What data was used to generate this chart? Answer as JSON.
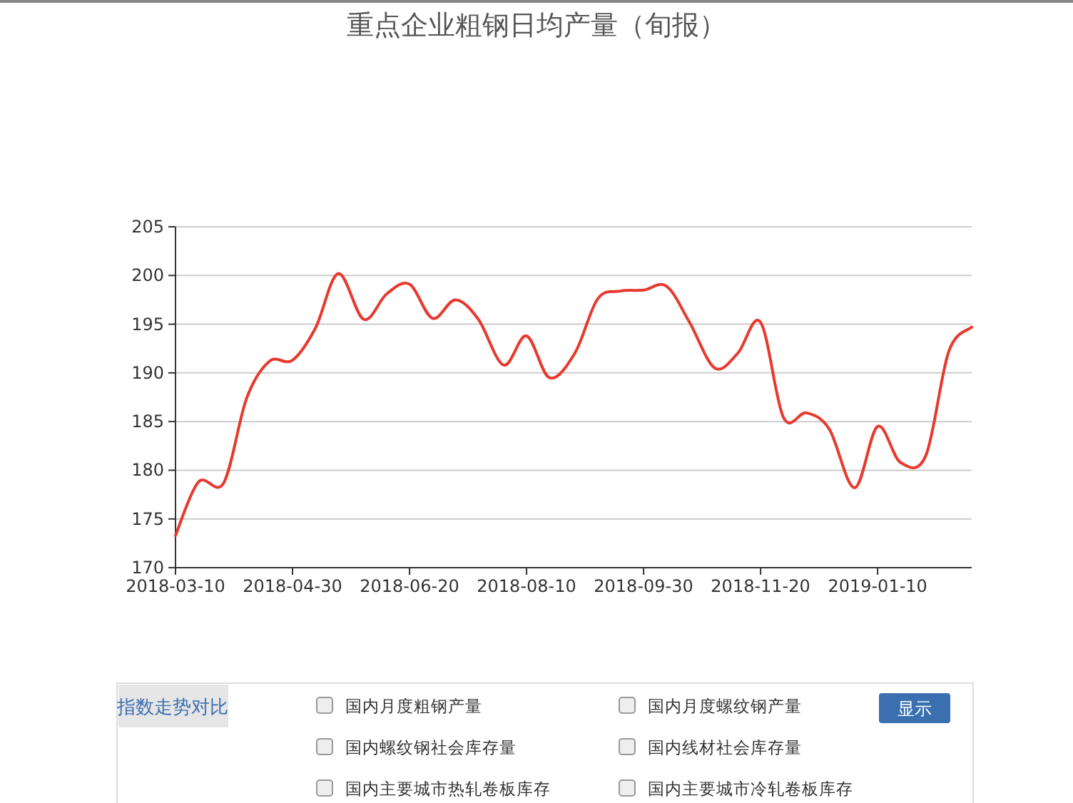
{
  "chart_data": {
    "type": "line",
    "title": "重点企业粗钢日均产量（旬报）",
    "x": [
      "2018-03-10",
      "2018-03-20",
      "2018-03-31",
      "2018-04-10",
      "2018-04-20",
      "2018-04-30",
      "2018-05-10",
      "2018-05-20",
      "2018-05-31",
      "2018-06-10",
      "2018-06-20",
      "2018-06-30",
      "2018-07-10",
      "2018-07-20",
      "2018-07-31",
      "2018-08-10",
      "2018-08-20",
      "2018-08-31",
      "2018-09-10",
      "2018-09-20",
      "2018-09-30",
      "2018-10-10",
      "2018-10-20",
      "2018-10-31",
      "2018-11-10",
      "2018-11-20",
      "2018-11-30",
      "2018-12-10",
      "2018-12-20",
      "2018-12-31",
      "2019-01-10",
      "2019-01-20",
      "2019-01-31",
      "2019-02-10",
      "2019-02-20"
    ],
    "series": [
      {
        "color": "#e8392f",
        "values": [
          173.3,
          178.8,
          178.7,
          187.4,
          191.2,
          191.3,
          194.6,
          200.2,
          195.5,
          198.1,
          199.1,
          195.6,
          197.5,
          195.5,
          190.8,
          193.8,
          189.5,
          192.0,
          197.6,
          198.4,
          198.5,
          198.9,
          195.2,
          190.5,
          192.0,
          195.2,
          185.4,
          185.9,
          184.2,
          178.2,
          184.5,
          180.8,
          181.5,
          192.2,
          194.7
        ]
      }
    ],
    "xlim": [
      "2018-03-10",
      "2019-02-20"
    ],
    "xticks": [
      "2018-03-10",
      "2018-04-30",
      "2018-06-20",
      "2018-08-10",
      "2018-09-30",
      "2018-11-20",
      "2019-01-10"
    ],
    "ylim": [
      170,
      205
    ],
    "yticks": [
      170,
      175,
      180,
      185,
      190,
      195,
      200,
      205
    ],
    "grid": "y",
    "annotations": [
      "指数走势对比",
      "国内月度粗钢产量",
      "国内月度螺纹钢产量",
      "国内螺纹钢社会库存量",
      "国内线材社会库存量",
      "国内主要城市热轧卷板库存",
      "国内主要城市冷轧卷板库存",
      "显示"
    ]
  }
}
